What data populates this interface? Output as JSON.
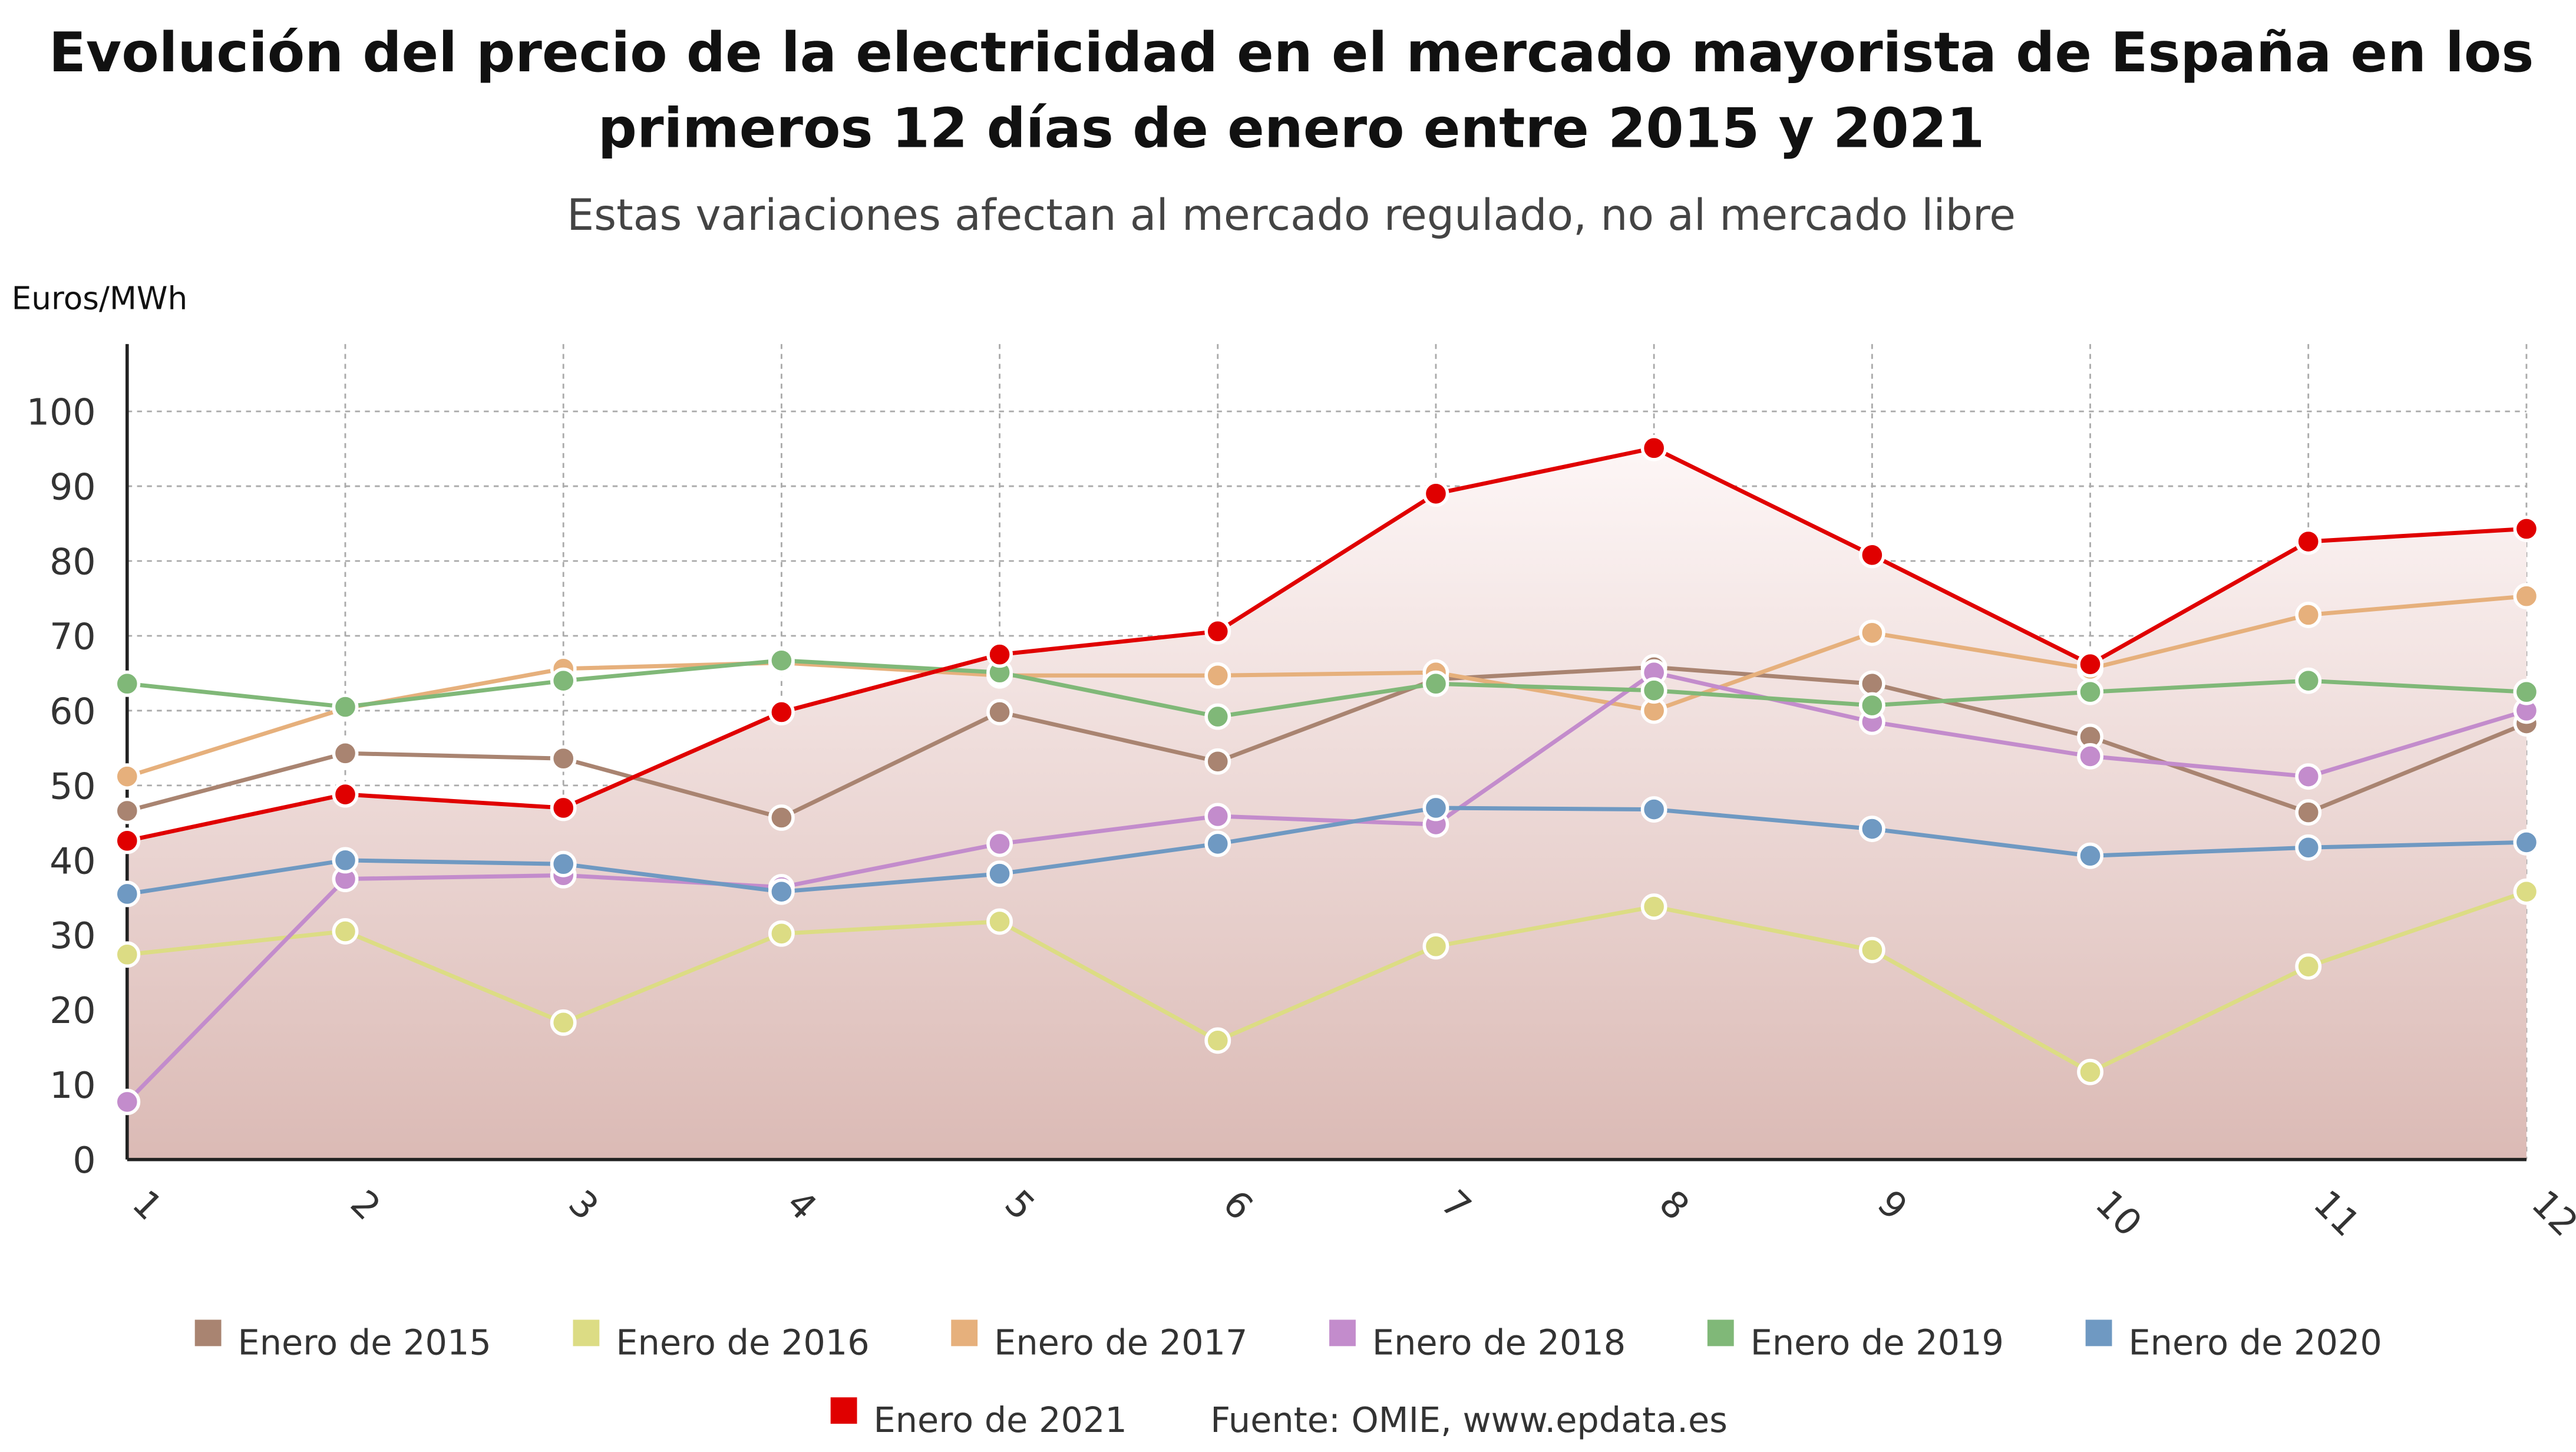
{
  "chart_data": {
    "type": "line",
    "title": "Evolución del precio de la electricidad en el mercado mayorista de España en los primeros 12 días de enero entre 2015 y 2021",
    "title_lines": [
      "Evolución del precio de la electricidad en el mercado mayorista de España en los",
      "primeros 12 días de enero entre 2015 y 2021"
    ],
    "subtitle": "Estas variaciones afectan al mercado regulado, no al mercado libre",
    "ylabel": "Euros/MWh",
    "xlabel": "",
    "x": [
      1,
      2,
      3,
      4,
      5,
      6,
      7,
      8,
      9,
      10,
      11,
      12
    ],
    "x_tick_labels": [
      "1",
      "2",
      "3",
      "4",
      "5",
      "6",
      "7",
      "8",
      "9",
      "10",
      "11",
      "12"
    ],
    "y_ticks": [
      0,
      10,
      20,
      30,
      40,
      50,
      60,
      70,
      80,
      90,
      100
    ],
    "ylim": [
      0,
      109
    ],
    "grid": true,
    "legend_placement": "bottom",
    "source": "Fuente: OMIE, www.epdata.es",
    "series": [
      {
        "name": "Enero de 2015",
        "color": "#a98471",
        "values": [
          46.6,
          54.3,
          53.6,
          45.7,
          59.8,
          53.2,
          64.2,
          65.8,
          63.6,
          56.5,
          46.4,
          58.3
        ]
      },
      {
        "name": "Enero de 2016",
        "color": "#dcdc84",
        "values": [
          27.4,
          30.5,
          18.3,
          30.2,
          31.8,
          15.9,
          28.5,
          33.8,
          28.0,
          11.7,
          25.8,
          35.8
        ]
      },
      {
        "name": "Enero de 2017",
        "color": "#e6b07c",
        "values": [
          51.2,
          60.3,
          65.6,
          66.4,
          64.7,
          64.7,
          65.1,
          60.0,
          70.4,
          65.6,
          72.8,
          75.3
        ]
      },
      {
        "name": "Enero de 2018",
        "color": "#c38ccc",
        "values": [
          7.7,
          37.5,
          38.0,
          36.4,
          42.2,
          45.9,
          44.8,
          65.1,
          58.5,
          53.9,
          51.2,
          60.0
        ]
      },
      {
        "name": "Enero de 2019",
        "color": "#80b878",
        "values": [
          63.6,
          60.5,
          64.0,
          66.7,
          65.1,
          59.2,
          63.6,
          62.7,
          60.7,
          62.5,
          64.0,
          62.5
        ]
      },
      {
        "name": "Enero de 2020",
        "color": "#6f99c2",
        "values": [
          35.5,
          40.0,
          39.5,
          35.8,
          38.2,
          42.2,
          47.0,
          46.8,
          44.2,
          40.6,
          41.7,
          42.4
        ]
      },
      {
        "name": "Enero de 2021",
        "color": "#e00000",
        "values": [
          42.6,
          48.8,
          47.0,
          59.8,
          67.5,
          70.6,
          89.0,
          95.1,
          80.8,
          66.2,
          82.6,
          84.3
        ],
        "area": true
      }
    ]
  }
}
